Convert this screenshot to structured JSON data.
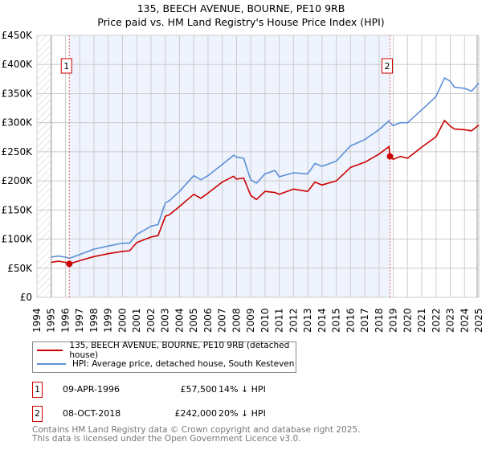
{
  "title": "135, BEECH AVENUE, BOURNE, PE10 9RB",
  "subtitle": "Price paid vs. HM Land Registry's House Price Index (HPI)",
  "legend": {
    "property": "135, BEECH AVENUE, BOURNE, PE10 9RB (detached house)",
    "hpi": "HPI: Average price, detached house, South Kesteven"
  },
  "sales": [
    {
      "num": "1",
      "date": "09-APR-1996",
      "price": "£57,500",
      "diff": "14% ↓ HPI"
    },
    {
      "num": "2",
      "date": "08-OCT-2018",
      "price": "£242,000",
      "diff": "20% ↓ HPI"
    }
  ],
  "footer": {
    "line1": "Contains HM Land Registry data © Crown copyright and database right 2025.",
    "line2": "This data is licensed under the Open Government Licence v3.0."
  },
  "colors": {
    "property": "#cc0000",
    "hpi": "#5b8fd6",
    "shade": "#eef3fd"
  },
  "chart_data": {
    "type": "line",
    "title": "135, BEECH AVENUE, BOURNE, PE10 9RB",
    "xlim": [
      1994,
      2025
    ],
    "ylim": [
      0,
      450000
    ],
    "yticks": [
      0,
      50000,
      100000,
      150000,
      200000,
      250000,
      300000,
      350000,
      400000,
      450000
    ],
    "ytick_labels": [
      "£0",
      "£50K",
      "£100K",
      "£150K",
      "£200K",
      "£250K",
      "£300K",
      "£350K",
      "£400K",
      "£450K"
    ],
    "xticks": [
      "1994",
      "1995",
      "1996",
      "1997",
      "1998",
      "1999",
      "2000",
      "2001",
      "2002",
      "2003",
      "2004",
      "2005",
      "2006",
      "2007",
      "2008",
      "2009",
      "2010",
      "2011",
      "2012",
      "2013",
      "2014",
      "2015",
      "2016",
      "2017",
      "2018",
      "2019",
      "2020",
      "2021",
      "2022",
      "2023",
      "2024",
      "2025"
    ],
    "grid": true,
    "markers": [
      {
        "label": "1",
        "x": 1996.27,
        "y": 57500
      },
      {
        "label": "2",
        "x": 2018.77,
        "y": 242000
      }
    ],
    "series": [
      {
        "name": "135, BEECH AVENUE, BOURNE, PE10 9RB (detached house)",
        "x": [
          1995,
          1995.5,
          1996,
          1996.27,
          1997,
          1998,
          1999,
          2000,
          2000.5,
          2001,
          2002,
          2002.5,
          2003,
          2003.3,
          2004,
          2005,
          2005.5,
          2006,
          2007,
          2007.8,
          2008,
          2008.5,
          2009,
          2009.4,
          2010,
          2010.7,
          2011,
          2012,
          2013,
          2013.5,
          2014,
          2015,
          2016,
          2017,
          2018,
          2018.7,
          2018.77,
          2019,
          2019.5,
          2020,
          2021,
          2022,
          2022.6,
          2023,
          2023.3,
          2024,
          2024.5,
          2025
        ],
        "y": [
          60000,
          62000,
          60000,
          57500,
          63000,
          70000,
          75000,
          79000,
          80000,
          94000,
          103500,
          106000,
          139000,
          142000,
          156000,
          177000,
          170000,
          179000,
          198000,
          208000,
          203000,
          205000,
          175000,
          168000,
          182000,
          180000,
          177000,
          186000,
          182000,
          198000,
          193000,
          200000,
          223000,
          232000,
          246000,
          259000,
          242000,
          237000,
          242000,
          239000,
          258000,
          276000,
          304000,
          294000,
          289000,
          288000,
          286000,
          296000
        ]
      },
      {
        "name": "HPI: Average price, detached house, South Kesteven",
        "x": [
          1995,
          1995.5,
          1996,
          1996.27,
          1997,
          1998,
          1999,
          2000,
          2000.5,
          2001,
          2002,
          2002.5,
          2003,
          2003.3,
          2004,
          2005,
          2005.5,
          2006,
          2007,
          2007.8,
          2008,
          2008.5,
          2009,
          2009.4,
          2010,
          2010.7,
          2011,
          2012,
          2013,
          2013.5,
          2014,
          2015,
          2016,
          2017,
          2018,
          2018.7,
          2018.77,
          2019,
          2019.5,
          2020,
          2021,
          2022,
          2022.6,
          2023,
          2023.3,
          2024,
          2024.5,
          2025
        ],
        "y": [
          69000,
          71000,
          69000,
          67000,
          73600,
          82800,
          88000,
          93000,
          93000,
          108000,
          122000,
          125000,
          162000,
          166000,
          182000,
          209000,
          202000,
          209000,
          228000,
          244000,
          241000,
          239000,
          202000,
          196000,
          212000,
          218000,
          207000,
          214000,
          212000,
          230000,
          225000,
          234000,
          260000,
          271000,
          288000,
          303000,
          300000,
          295000,
          300000,
          300000,
          322000,
          345000,
          377000,
          371000,
          361000,
          359000,
          354000,
          368000
        ]
      }
    ]
  }
}
